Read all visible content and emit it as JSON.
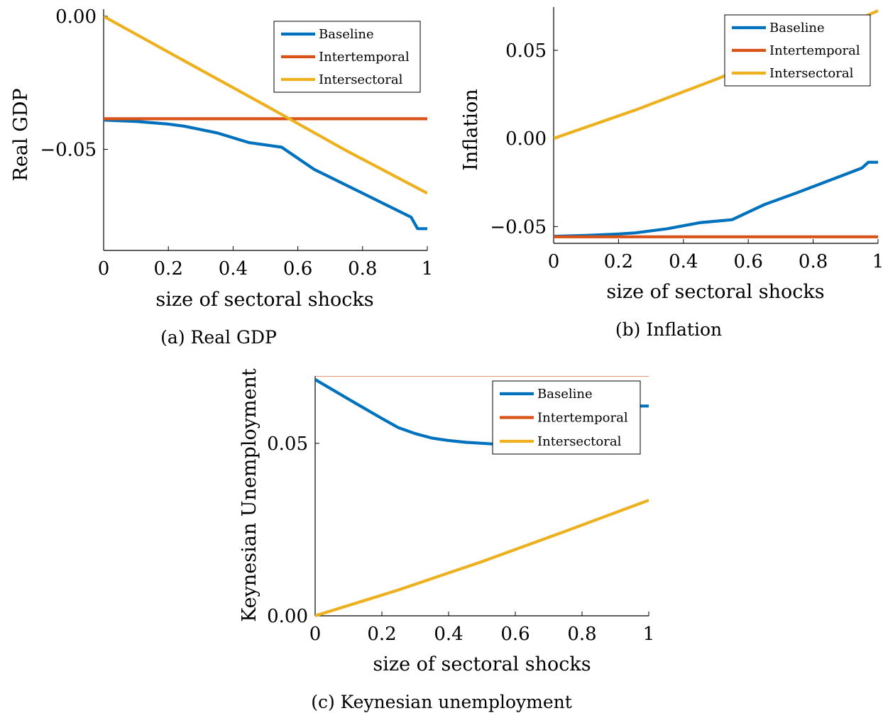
{
  "colors": {
    "Baseline": "#0072BD",
    "Intertemporal": "#D95319",
    "Intersectoral": "#EDB120"
  },
  "chart_data": [
    {
      "id": "a",
      "type": "line",
      "caption": "(a) Real GDP",
      "xlabel": "size of sectoral shocks",
      "ylabel": "Real GDP",
      "xlim": [
        0,
        1
      ],
      "ylim": [
        -0.088,
        0.0
      ],
      "xticks": [
        "0",
        "0.2",
        "0.4",
        "0.6",
        "0.8",
        "1"
      ],
      "xtick_values": [
        0,
        0.2,
        0.4,
        0.6,
        0.8,
        1
      ],
      "yticks": [
        "−0.05",
        "0.00"
      ],
      "ytick_values": [
        -0.05,
        0.0
      ],
      "grid": false,
      "legend": "top-right",
      "series": [
        {
          "name": "Baseline",
          "x": [
            0,
            0.1,
            0.2,
            0.25,
            0.35,
            0.45,
            0.55,
            0.65,
            0.75,
            0.85,
            0.95,
            0.97,
            1.0
          ],
          "y": [
            -0.039,
            -0.0395,
            -0.0405,
            -0.0413,
            -0.0438,
            -0.0475,
            -0.0492,
            -0.0575,
            -0.0635,
            -0.0695,
            -0.0755,
            -0.0798,
            -0.0798
          ]
        },
        {
          "name": "Intertemporal",
          "x": [
            0,
            1
          ],
          "y": [
            -0.0385,
            -0.0385
          ]
        },
        {
          "name": "Intersectoral",
          "x": [
            0,
            0.25,
            0.5,
            0.75,
            1.0
          ],
          "y": [
            0.0,
            -0.0168,
            -0.0335,
            -0.0505,
            -0.0665
          ]
        }
      ]
    },
    {
      "id": "b",
      "type": "line",
      "caption": "(b) Inflation",
      "xlabel": "size of sectoral shocks",
      "ylabel": "Inflation",
      "xlim": [
        0,
        1
      ],
      "ylim": [
        -0.0595,
        0.0745
      ],
      "xticks": [
        "0",
        "0.2",
        "0.4",
        "0.6",
        "0.8",
        "1"
      ],
      "xtick_values": [
        0,
        0.2,
        0.4,
        0.6,
        0.8,
        1
      ],
      "yticks": [
        "−0.05",
        "0.00",
        "0.05"
      ],
      "ytick_values": [
        -0.05,
        0.0,
        0.05
      ],
      "grid": false,
      "legend": "top-right",
      "series": [
        {
          "name": "Baseline",
          "x": [
            0,
            0.1,
            0.2,
            0.25,
            0.35,
            0.45,
            0.55,
            0.65,
            0.75,
            0.85,
            0.95,
            0.97,
            1.0
          ],
          "y": [
            -0.0555,
            -0.055,
            -0.0542,
            -0.0536,
            -0.0512,
            -0.0478,
            -0.0461,
            -0.0375,
            -0.0308,
            -0.0238,
            -0.0168,
            -0.0135,
            -0.0135
          ]
        },
        {
          "name": "Intertemporal",
          "x": [
            0,
            1
          ],
          "y": [
            -0.0558,
            -0.0558
          ]
        },
        {
          "name": "Intersectoral",
          "x": [
            0,
            0.25,
            0.5,
            0.75,
            1.0
          ],
          "y": [
            0.0,
            0.016,
            0.0335,
            0.052,
            0.0725
          ]
        }
      ]
    },
    {
      "id": "c",
      "type": "line",
      "caption": "(c) Keynesian unemployment",
      "xlabel": "size of sectoral shocks",
      "ylabel": "Keynesian Unemployment",
      "xlim": [
        0,
        1
      ],
      "ylim": [
        0.0,
        0.0695
      ],
      "xticks": [
        "0",
        "0.2",
        "0.4",
        "0.6",
        "0.8",
        "1"
      ],
      "xtick_values": [
        0,
        0.2,
        0.4,
        0.6,
        0.8,
        1
      ],
      "yticks": [
        "0.00",
        "0.05"
      ],
      "ytick_values": [
        0.0,
        0.05
      ],
      "grid": false,
      "legend": "top-right",
      "series": [
        {
          "name": "Baseline",
          "x": [
            0,
            0.1,
            0.2,
            0.25,
            0.3,
            0.35,
            0.4,
            0.45,
            0.5,
            0.55,
            0.6,
            0.65,
            0.75,
            0.85,
            0.95,
            0.97,
            1.0
          ],
          "y": [
            0.0685,
            0.0628,
            0.0572,
            0.0545,
            0.0528,
            0.0515,
            0.0508,
            0.0503,
            0.05,
            0.0497,
            0.0502,
            0.0512,
            0.0535,
            0.0562,
            0.0593,
            0.0608,
            0.0608
          ]
        },
        {
          "name": "Intertemporal",
          "x": [
            0,
            1
          ],
          "y": [
            0.0698,
            0.0698
          ]
        },
        {
          "name": "Intersectoral",
          "x": [
            0,
            0.25,
            0.5,
            0.75,
            1.0
          ],
          "y": [
            0.0,
            0.0075,
            0.0157,
            0.0245,
            0.0335
          ]
        }
      ]
    }
  ]
}
